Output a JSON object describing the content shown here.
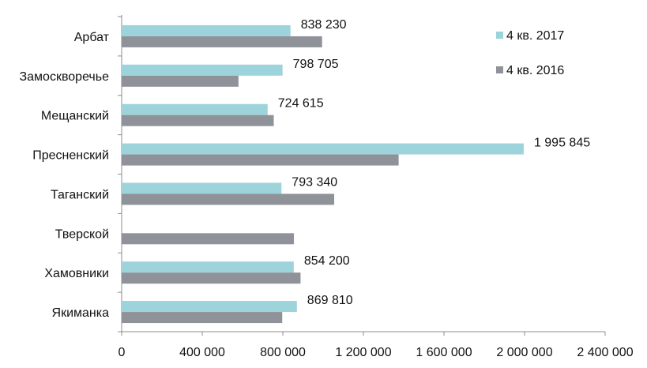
{
  "chart_data": {
    "type": "bar",
    "orientation": "horizontal",
    "categories": [
      "Арбат",
      "Замоскворечье",
      "Мещанский",
      "Пресненский",
      "Таганский",
      "Тверской",
      "Хамовники",
      "Якиманка"
    ],
    "series": [
      {
        "name": "4 кв. 2017",
        "color": "#9dd3da",
        "values": [
          838230,
          798705,
          724615,
          1995845,
          793340,
          null,
          854200,
          869810
        ],
        "labels": [
          "838 230",
          "798 705",
          "724 615",
          "1 995 845",
          "793 340",
          "",
          "854 200",
          "869 810"
        ]
      },
      {
        "name": "4 кв. 2016",
        "color": "#8f9399",
        "values": [
          995000,
          580000,
          755000,
          1375000,
          1055000,
          855000,
          888000,
          797000
        ]
      }
    ],
    "xlim": [
      0,
      2400000
    ],
    "xticks": [
      0,
      400000,
      800000,
      1200000,
      1600000,
      2000000,
      2400000
    ],
    "xtick_labels": [
      "0",
      "400 000",
      "800 000",
      "1 200 000",
      "1 600 000",
      "2 000 000",
      "2 400 000"
    ],
    "grid": false,
    "legend_position": "top-right"
  }
}
